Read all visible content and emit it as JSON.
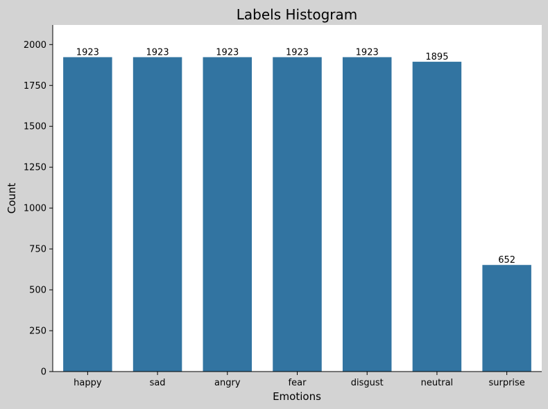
{
  "chart_data": {
    "type": "bar",
    "title": "Labels Histogram",
    "xlabel": "Emotions",
    "ylabel": "Count",
    "categories": [
      "happy",
      "sad",
      "angry",
      "fear",
      "disgust",
      "neutral",
      "surprise"
    ],
    "values": [
      1923,
      1923,
      1923,
      1923,
      1923,
      1895,
      652
    ],
    "data_labels": [
      "1923",
      "1923",
      "1923",
      "1923",
      "1923",
      "1895",
      "652"
    ],
    "ylim": [
      0,
      2120
    ],
    "yticks": [
      0,
      250,
      500,
      750,
      1000,
      1250,
      1500,
      1750,
      2000
    ],
    "ytick_labels": [
      "0",
      "250",
      "500",
      "750",
      "1000",
      "1250",
      "1500",
      "1750",
      "2000"
    ],
    "bar_color": "#3274a1",
    "figure_background": "#d3d3d3",
    "axes_background": "#ffffff",
    "grid": false,
    "legend": "none"
  }
}
